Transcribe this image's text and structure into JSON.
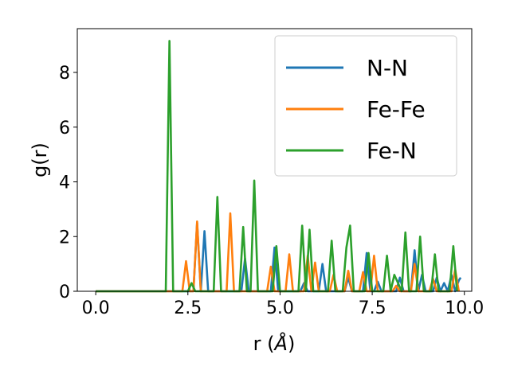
{
  "chart_data": {
    "type": "line",
    "xlabel_main": "r (",
    "xlabel_unit": "Å",
    "xlabel_end": ")",
    "ylabel": "g(r)",
    "xlim": [
      -0.5,
      10.2
    ],
    "ylim": [
      0,
      9.6
    ],
    "xticks": [
      0.0,
      2.5,
      5.0,
      7.5,
      10.0
    ],
    "xtick_labels": [
      "0.0",
      "2.5",
      "5.0",
      "7.5",
      "10.0"
    ],
    "yticks": [
      0,
      2,
      4,
      6,
      8
    ],
    "ytick_labels": [
      "0",
      "2",
      "4",
      "6",
      "8"
    ],
    "grid": false,
    "legend_position": "top-right",
    "series": [
      {
        "name": "N-N",
        "color": "#1f77b4",
        "x": [
          0.0,
          2.65,
          2.75,
          2.85,
          2.95,
          3.05,
          3.95,
          4.05,
          4.15,
          4.75,
          4.85,
          4.95,
          5.55,
          5.65,
          5.75,
          6.05,
          6.15,
          6.25,
          6.75,
          6.85,
          6.95,
          7.25,
          7.35,
          7.45,
          7.55,
          7.65,
          7.75,
          8.15,
          8.25,
          8.35,
          8.55,
          8.65,
          8.75,
          8.85,
          8.95,
          9.15,
          9.25,
          9.35,
          9.45,
          9.55,
          9.65,
          9.75,
          9.85,
          9.9
        ],
        "y": [
          0.0,
          0.0,
          2.5,
          0.0,
          2.2,
          0.0,
          0.0,
          1.2,
          0.0,
          0.0,
          1.6,
          0.0,
          0.0,
          0.3,
          0.0,
          0.0,
          1.0,
          0.0,
          0.0,
          0.5,
          0.0,
          0.0,
          1.4,
          0.0,
          0.0,
          0.35,
          0.0,
          0.0,
          0.5,
          0.0,
          0.0,
          1.5,
          0.0,
          0.6,
          0.0,
          0.0,
          0.5,
          0.0,
          0.3,
          0.0,
          0.6,
          0.0,
          0.4,
          0.5
        ]
      },
      {
        "name": "Fe-Fe",
        "color": "#ff7f0e",
        "x": [
          0.0,
          2.35,
          2.45,
          2.55,
          2.65,
          2.75,
          2.85,
          3.55,
          3.65,
          3.75,
          4.65,
          4.75,
          4.85,
          5.15,
          5.25,
          5.35,
          5.65,
          5.75,
          5.85,
          5.95,
          6.05,
          6.35,
          6.45,
          6.55,
          6.75,
          6.85,
          6.95,
          7.15,
          7.25,
          7.35,
          7.45,
          7.55,
          7.65,
          8.05,
          8.15,
          8.25,
          8.55,
          8.65,
          8.75,
          9.05,
          9.15,
          9.25,
          9.65,
          9.75,
          9.85
        ],
        "y": [
          0.0,
          0.0,
          1.1,
          0.0,
          0.0,
          2.55,
          0.0,
          0.0,
          2.85,
          0.0,
          0.0,
          0.9,
          0.0,
          0.0,
          1.35,
          0.0,
          0.0,
          1.3,
          0.0,
          1.05,
          0.0,
          0.0,
          0.6,
          0.0,
          0.0,
          0.75,
          0.0,
          0.0,
          0.7,
          0.0,
          0.0,
          1.3,
          0.0,
          0.0,
          0.2,
          0.0,
          0.0,
          1.0,
          0.0,
          0.0,
          0.45,
          0.0,
          0.0,
          0.8,
          0.0
        ]
      },
      {
        "name": "Fe-N",
        "color": "#2ca02c",
        "x": [
          0.0,
          1.9,
          2.0,
          2.1,
          2.5,
          2.6,
          2.7,
          3.2,
          3.3,
          3.4,
          3.9,
          4.0,
          4.1,
          4.2,
          4.3,
          4.4,
          4.8,
          4.9,
          5.0,
          5.5,
          5.6,
          5.7,
          5.8,
          5.9,
          6.3,
          6.4,
          6.5,
          6.7,
          6.8,
          6.9,
          7.0,
          7.3,
          7.4,
          7.5,
          7.8,
          7.9,
          8.0,
          8.1,
          8.3,
          8.4,
          8.5,
          8.7,
          8.8,
          8.9,
          9.1,
          9.2,
          9.3,
          9.6,
          9.7,
          9.8
        ],
        "y": [
          0.0,
          0.0,
          9.15,
          0.0,
          0.0,
          0.3,
          0.0,
          0.0,
          3.45,
          0.0,
          0.0,
          2.35,
          0.0,
          0.0,
          4.05,
          0.0,
          0.0,
          1.65,
          0.0,
          0.0,
          2.4,
          0.0,
          2.25,
          0.0,
          0.0,
          1.85,
          0.0,
          0.0,
          1.6,
          2.4,
          0.0,
          0.0,
          1.4,
          0.0,
          0.0,
          1.3,
          0.0,
          0.6,
          0.0,
          2.15,
          0.0,
          0.0,
          2.0,
          0.0,
          0.0,
          1.35,
          0.0,
          0.0,
          1.65,
          0.0
        ]
      }
    ]
  }
}
